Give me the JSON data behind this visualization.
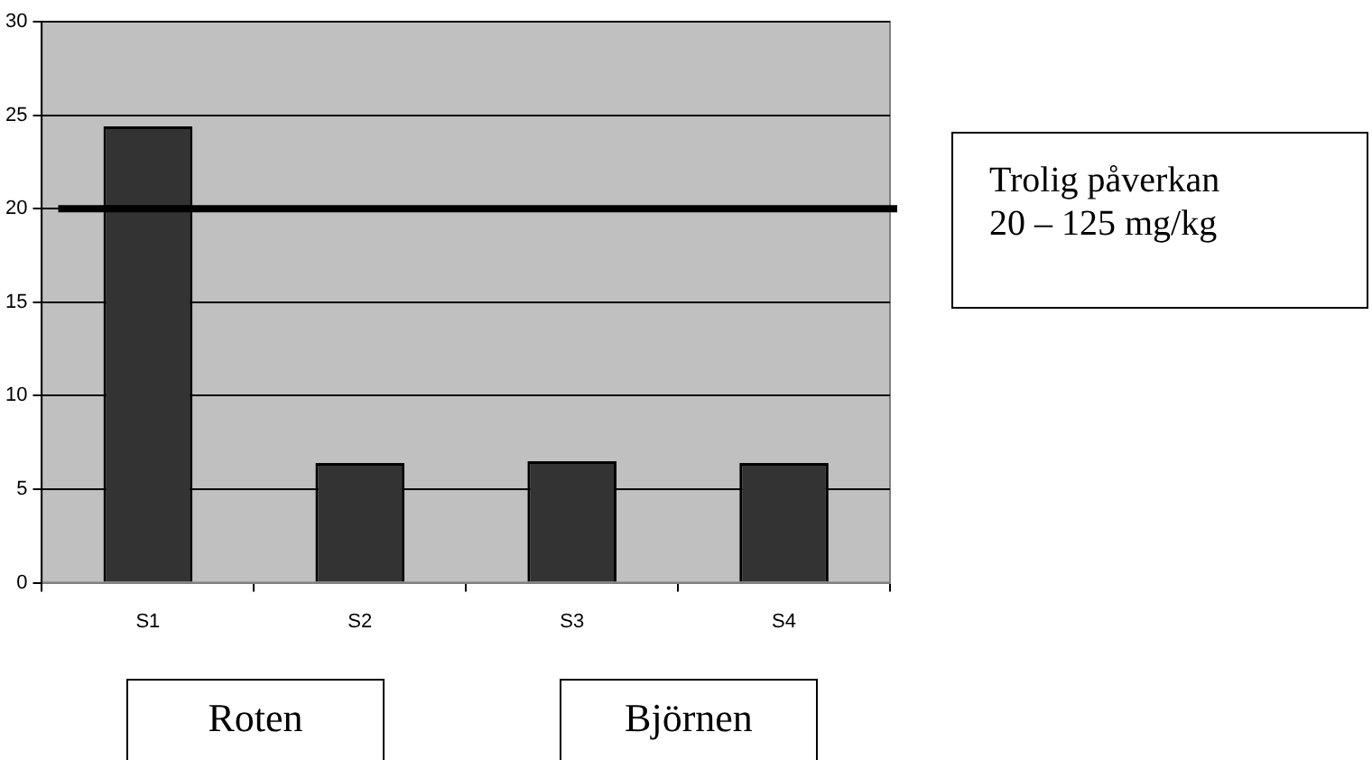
{
  "chart_data": {
    "type": "bar",
    "categories": [
      "S1",
      "S2",
      "S3",
      "S4"
    ],
    "values": [
      24.4,
      6.4,
      6.5,
      6.4
    ],
    "color": "#333333",
    "ylim": [
      0,
      30
    ],
    "yticks": [
      0,
      5,
      10,
      15,
      20,
      25,
      30
    ],
    "grid": "y",
    "legend": false,
    "ref_lines": [
      {
        "axis": "y",
        "value": 20,
        "label": "Trolig påverkan\n20 – 125 mg/kg",
        "color": "#000000"
      }
    ],
    "annotations": [
      "Roten",
      "Björnen"
    ]
  }
}
